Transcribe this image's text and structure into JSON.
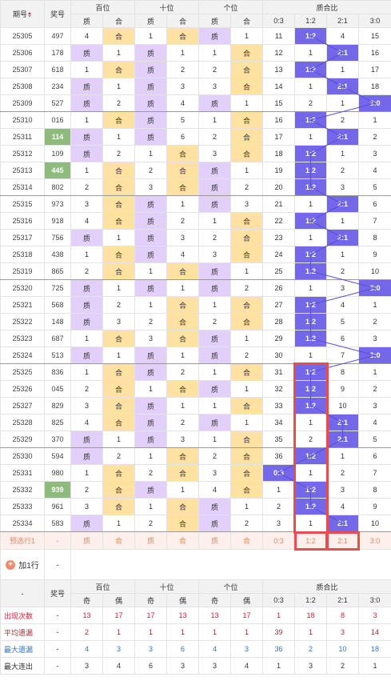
{
  "headers": {
    "period": "期号",
    "prize": "奖号",
    "baiwei": "百位",
    "shiwei": "十位",
    "gewei": "个位",
    "ratio": "质合比",
    "zhi": "质",
    "he": "合",
    "ratio_cols": [
      "0:3",
      "1:2",
      "2:1",
      "3:0"
    ]
  },
  "rows": [
    {
      "p": "25305",
      "n": "497",
      "b": [
        "4",
        "合"
      ],
      "s": [
        "1",
        "合"
      ],
      "g": [
        "质",
        "1"
      ],
      "r": [
        "11",
        "1:2",
        "4",
        "15"
      ],
      "rh": 1,
      "hl": 0
    },
    {
      "p": "25306",
      "n": "178",
      "b": [
        "质",
        "1"
      ],
      "s": [
        "质",
        "1"
      ],
      "g": [
        "1",
        "合"
      ],
      "r": [
        "12",
        "1",
        "2:1",
        "16"
      ],
      "rh": 2,
      "hl": 0
    },
    {
      "p": "25307",
      "n": "618",
      "b": [
        "1",
        "合"
      ],
      "s": [
        "质",
        "2"
      ],
      "g": [
        "2",
        "合"
      ],
      "r": [
        "13",
        "1:2",
        "1",
        "17"
      ],
      "rh": 1,
      "hl": 0
    },
    {
      "p": "25308",
      "n": "234",
      "b": [
        "质",
        "1"
      ],
      "s": [
        "质",
        "3"
      ],
      "g": [
        "3",
        "合"
      ],
      "r": [
        "14",
        "1",
        "2:1",
        "18"
      ],
      "rh": 2,
      "hl": 0
    },
    {
      "p": "25309",
      "n": "527",
      "b": [
        "质",
        "2"
      ],
      "s": [
        "质",
        "4"
      ],
      "g": [
        "质",
        "1"
      ],
      "r": [
        "15",
        "2",
        "1",
        "3:0"
      ],
      "rh": 3,
      "hl": 0
    },
    {
      "p": "25310",
      "n": "016",
      "b": [
        "1",
        "合"
      ],
      "s": [
        "质",
        "5"
      ],
      "g": [
        "1",
        "合"
      ],
      "r": [
        "16",
        "1:2",
        "2",
        "1"
      ],
      "rh": 1,
      "hl": 0
    },
    {
      "p": "25311",
      "n": "114",
      "b": [
        "质",
        "1"
      ],
      "s": [
        "质",
        "6"
      ],
      "g": [
        "2",
        "合"
      ],
      "r": [
        "17",
        "1",
        "2:1",
        "2"
      ],
      "rh": 2,
      "hl": 1
    },
    {
      "p": "25312",
      "n": "109",
      "b": [
        "质",
        "2"
      ],
      "s": [
        "1",
        "合"
      ],
      "g": [
        "3",
        "合"
      ],
      "r": [
        "18",
        "1:2",
        "1",
        "3"
      ],
      "rh": 1,
      "hl": 0
    },
    {
      "p": "25313",
      "n": "445",
      "b": [
        "1",
        "合"
      ],
      "s": [
        "2",
        "合"
      ],
      "g": [
        "质",
        "1"
      ],
      "r": [
        "19",
        "1:2",
        "2",
        "4"
      ],
      "rh": 1,
      "hl": 1
    },
    {
      "p": "25314",
      "n": "802",
      "b": [
        "2",
        "合"
      ],
      "s": [
        "3",
        "合"
      ],
      "g": [
        "质",
        "2"
      ],
      "r": [
        "20",
        "1:2",
        "3",
        "5"
      ],
      "rh": 1,
      "hl": 0
    },
    {
      "p": "25315",
      "n": "973",
      "b": [
        "3",
        "合"
      ],
      "s": [
        "质",
        "1"
      ],
      "g": [
        "质",
        "3"
      ],
      "r": [
        "21",
        "1",
        "2:1",
        "6"
      ],
      "rh": 2,
      "hl": 0
    },
    {
      "p": "25316",
      "n": "918",
      "b": [
        "4",
        "合"
      ],
      "s": [
        "质",
        "2"
      ],
      "g": [
        "1",
        "合"
      ],
      "r": [
        "22",
        "1:2",
        "1",
        "7"
      ],
      "rh": 1,
      "hl": 0
    },
    {
      "p": "25317",
      "n": "756",
      "b": [
        "质",
        "1"
      ],
      "s": [
        "质",
        "3"
      ],
      "g": [
        "2",
        "合"
      ],
      "r": [
        "23",
        "1",
        "2:1",
        "8"
      ],
      "rh": 2,
      "hl": 0
    },
    {
      "p": "25318",
      "n": "438",
      "b": [
        "1",
        "合"
      ],
      "s": [
        "质",
        "4"
      ],
      "g": [
        "3",
        "合"
      ],
      "r": [
        "24",
        "1:2",
        "1",
        "9"
      ],
      "rh": 1,
      "hl": 0
    },
    {
      "p": "25319",
      "n": "865",
      "b": [
        "2",
        "合"
      ],
      "s": [
        "1",
        "合"
      ],
      "g": [
        "质",
        "1"
      ],
      "r": [
        "25",
        "1:2",
        "2",
        "10"
      ],
      "rh": 1,
      "hl": 0
    },
    {
      "p": "25320",
      "n": "725",
      "b": [
        "质",
        "1"
      ],
      "s": [
        "质",
        "1"
      ],
      "g": [
        "质",
        "2"
      ],
      "r": [
        "26",
        "1",
        "3",
        "3:0"
      ],
      "rh": 3,
      "hl": 0
    },
    {
      "p": "25321",
      "n": "568",
      "b": [
        "质",
        "2"
      ],
      "s": [
        "1",
        "合"
      ],
      "g": [
        "1",
        "合"
      ],
      "r": [
        "27",
        "1:2",
        "4",
        "1"
      ],
      "rh": 1,
      "hl": 0
    },
    {
      "p": "25322",
      "n": "148",
      "b": [
        "质",
        "3"
      ],
      "s": [
        "2",
        "合"
      ],
      "g": [
        "2",
        "合"
      ],
      "r": [
        "28",
        "1:2",
        "5",
        "2"
      ],
      "rh": 1,
      "hl": 0
    },
    {
      "p": "25323",
      "n": "687",
      "b": [
        "1",
        "合"
      ],
      "s": [
        "3",
        "合"
      ],
      "g": [
        "质",
        "1"
      ],
      "r": [
        "29",
        "1:2",
        "6",
        "3"
      ],
      "rh": 1,
      "hl": 0
    },
    {
      "p": "25324",
      "n": "513",
      "b": [
        "质",
        "1"
      ],
      "s": [
        "质",
        "1"
      ],
      "g": [
        "质",
        "2"
      ],
      "r": [
        "30",
        "1",
        "7",
        "3:0"
      ],
      "rh": 3,
      "hl": 0
    },
    {
      "p": "25325",
      "n": "836",
      "b": [
        "1",
        "合"
      ],
      "s": [
        "质",
        "2"
      ],
      "g": [
        "1",
        "合"
      ],
      "r": [
        "31",
        "1:2",
        "8",
        "1"
      ],
      "rh": 1,
      "hl": 0
    },
    {
      "p": "25326",
      "n": "045",
      "b": [
        "2",
        "合"
      ],
      "s": [
        "1",
        "合"
      ],
      "g": [
        "质",
        "1"
      ],
      "r": [
        "32",
        "1:2",
        "9",
        "2"
      ],
      "rh": 1,
      "hl": 0
    },
    {
      "p": "25327",
      "n": "829",
      "b": [
        "3",
        "合"
      ],
      "s": [
        "质",
        "1"
      ],
      "g": [
        "1",
        "合"
      ],
      "r": [
        "33",
        "1:2",
        "10",
        "3"
      ],
      "rh": 1,
      "hl": 0
    },
    {
      "p": "25328",
      "n": "825",
      "b": [
        "4",
        "合"
      ],
      "s": [
        "质",
        "2"
      ],
      "g": [
        "质",
        "1"
      ],
      "r": [
        "34",
        "1",
        "2:1",
        "4"
      ],
      "rh": 2,
      "hl": 0
    },
    {
      "p": "25329",
      "n": "370",
      "b": [
        "质",
        "1"
      ],
      "s": [
        "质",
        "3"
      ],
      "g": [
        "1",
        "合"
      ],
      "r": [
        "35",
        "2",
        "2:1",
        "5"
      ],
      "rh": 2,
      "hl": 0
    },
    {
      "p": "25330",
      "n": "594",
      "b": [
        "质",
        "2"
      ],
      "s": [
        "1",
        "合"
      ],
      "g": [
        "2",
        "合"
      ],
      "r": [
        "36",
        "1:2",
        "1",
        "6"
      ],
      "rh": 1,
      "hl": 0
    },
    {
      "p": "25331",
      "n": "980",
      "b": [
        "1",
        "合"
      ],
      "s": [
        "2",
        "合"
      ],
      "g": [
        "3",
        "合"
      ],
      "r": [
        "0:3",
        "1",
        "2",
        "7"
      ],
      "rh": 0,
      "hl": 0
    },
    {
      "p": "25332",
      "n": "939",
      "b": [
        "2",
        "合"
      ],
      "s": [
        "质",
        "1"
      ],
      "g": [
        "4",
        "合"
      ],
      "r": [
        "1",
        "1:2",
        "3",
        "8"
      ],
      "rh": 1,
      "hl": 1
    },
    {
      "p": "25333",
      "n": "961",
      "b": [
        "3",
        "合"
      ],
      "s": [
        "1",
        "合"
      ],
      "g": [
        "质",
        "1"
      ],
      "r": [
        "2",
        "1:2",
        "4",
        "9"
      ],
      "rh": 1,
      "hl": 0
    },
    {
      "p": "25334",
      "n": "583",
      "b": [
        "质",
        "1"
      ],
      "s": [
        "2",
        "合"
      ],
      "g": [
        "质",
        "2"
      ],
      "r": [
        "3",
        "1",
        "2:1",
        "10"
      ],
      "rh": 2,
      "hl": 0
    }
  ],
  "prediction": {
    "label": "预选行1",
    "prize": "-",
    "cells": [
      "质",
      "合",
      "质",
      "合",
      "质",
      "合",
      "0:3",
      "1:2",
      "2:1",
      "3:0"
    ]
  },
  "add_row": {
    "label": "加1行",
    "icon": "plus-icon",
    "value": "-"
  },
  "stats_header": {
    "dash": "-",
    "prize": "奖号",
    "baiwei": "百位",
    "shiwei": "十位",
    "gewei": "个位",
    "ratio": "质合比",
    "odd": "奇",
    "even": "偶",
    "ratio_cols": [
      "0:3",
      "1:2",
      "2:1",
      "3:0"
    ]
  },
  "stats": [
    {
      "label": "出现次数",
      "dash": "-",
      "vals": [
        "13",
        "17",
        "17",
        "13",
        "13",
        "17",
        "1",
        "18",
        "8",
        "3"
      ],
      "color": "s-red"
    },
    {
      "label": "平均遗漏",
      "dash": "-",
      "vals": [
        "2",
        "1",
        "1",
        "1",
        "1",
        "1",
        "39",
        "1",
        "3",
        "14"
      ],
      "color": "s-brown"
    },
    {
      "label": "最大遗漏",
      "dash": "-",
      "vals": [
        "4",
        "3",
        "3",
        "6",
        "4",
        "3",
        "36",
        "2",
        "10",
        "18"
      ],
      "color": "s-blue"
    },
    {
      "label": "最大连出",
      "dash": "-",
      "vals": [
        "3",
        "4",
        "6",
        "3",
        "3",
        "4",
        "1",
        "3",
        "2",
        "1"
      ],
      "color": "s-gray"
    }
  ],
  "colors": {
    "zhi": "#e3d0fa",
    "he": "#ffe1a1",
    "ratio_active": "#7468e8",
    "prize_highlight": "#8fba7e",
    "red_box": "#e84c4c"
  }
}
